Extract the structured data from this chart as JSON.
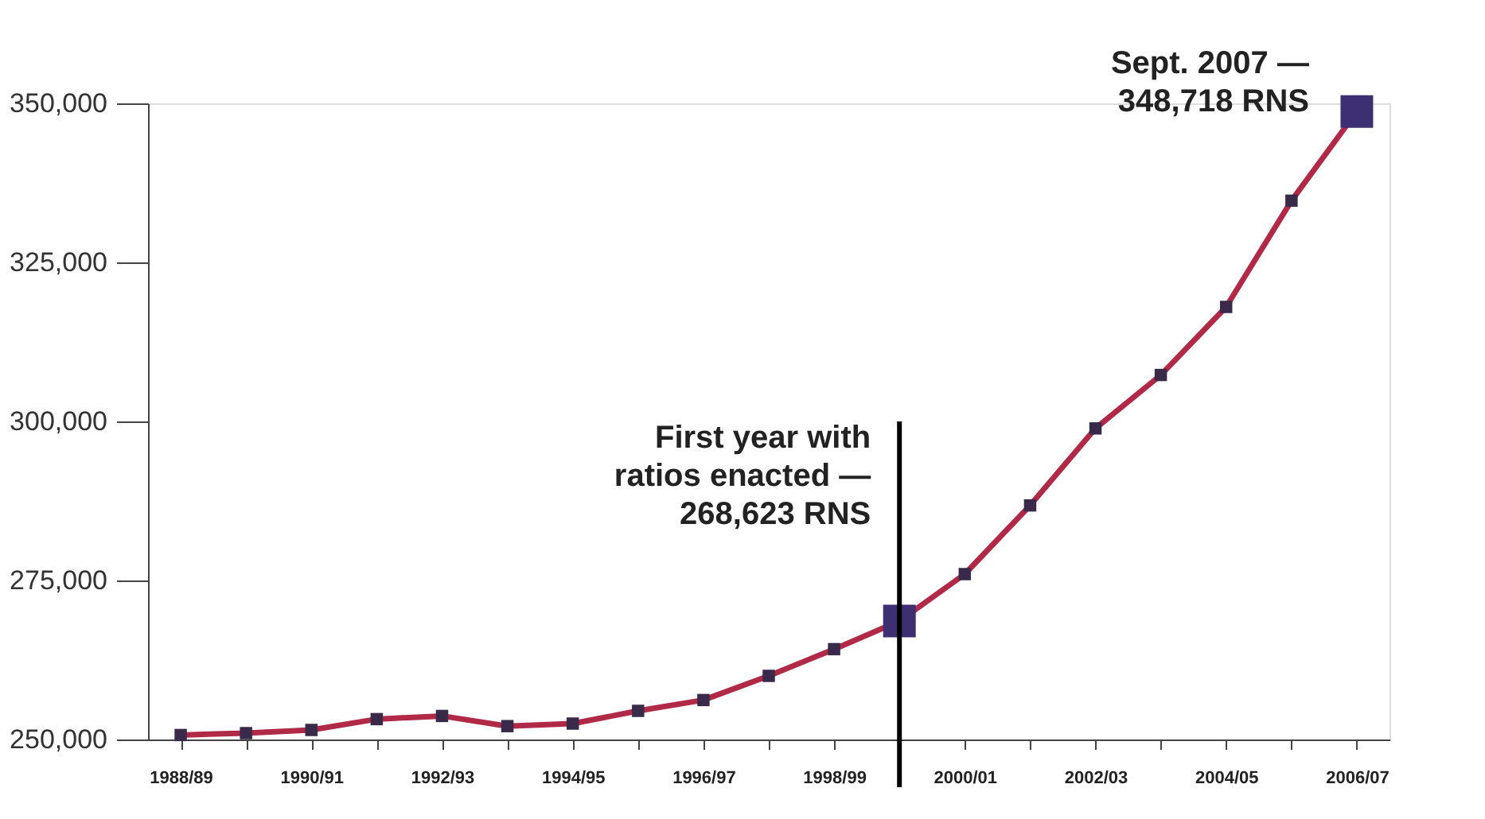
{
  "chart_data": {
    "type": "line",
    "categories": [
      "1988/89",
      null,
      "1990/91",
      null,
      "1992/93",
      null,
      "1994/95",
      null,
      "1996/97",
      null,
      "1998/99",
      null,
      "2000/01",
      null,
      "2002/03",
      null,
      "2004/05",
      null,
      "2006/07"
    ],
    "series": [
      {
        "color": "#b02a48",
        "colors": [
          "#3a2a4a",
          "#3a2a4a",
          "#3a2a4a",
          "#3a2a4a",
          "#3a2a4a",
          "#3a2a4a",
          "#3a2a4a",
          "#3a2a4a",
          "#3a2a4a",
          "#3a2a4a",
          "#3a2a4a",
          "#3d2f72",
          "#3a2a4a",
          "#3a2a4a",
          "#3a2a4a",
          "#3a2a4a",
          "#3a2a4a",
          "#3a2a4a",
          "#3d2f72"
        ],
        "values": [
          250700,
          251000,
          251500,
          253200,
          253700,
          252100,
          252500,
          254500,
          256200,
          260000,
          264200,
          268623,
          276000,
          286800,
          298900,
          307300,
          318000,
          334700,
          348718
        ]
      }
    ],
    "ylim": [
      250000,
      350000
    ],
    "yticks": [
      {
        "value": 250000,
        "label": "250,000"
      },
      {
        "value": 275000,
        "label": "275,000"
      },
      {
        "value": 300000,
        "label": "300,000"
      },
      {
        "value": 325000,
        "label": "325,000"
      },
      {
        "value": 350000,
        "label": "350,000"
      }
    ],
    "annotations": [
      "First year with\nratios enacted —\n268,623 RNS",
      {
        "text": "Sept. 2007 —\n348,718 RNS",
        "x": "2006/07",
        "y": 348718
      }
    ],
    "marker": "square",
    "grid": false
  }
}
